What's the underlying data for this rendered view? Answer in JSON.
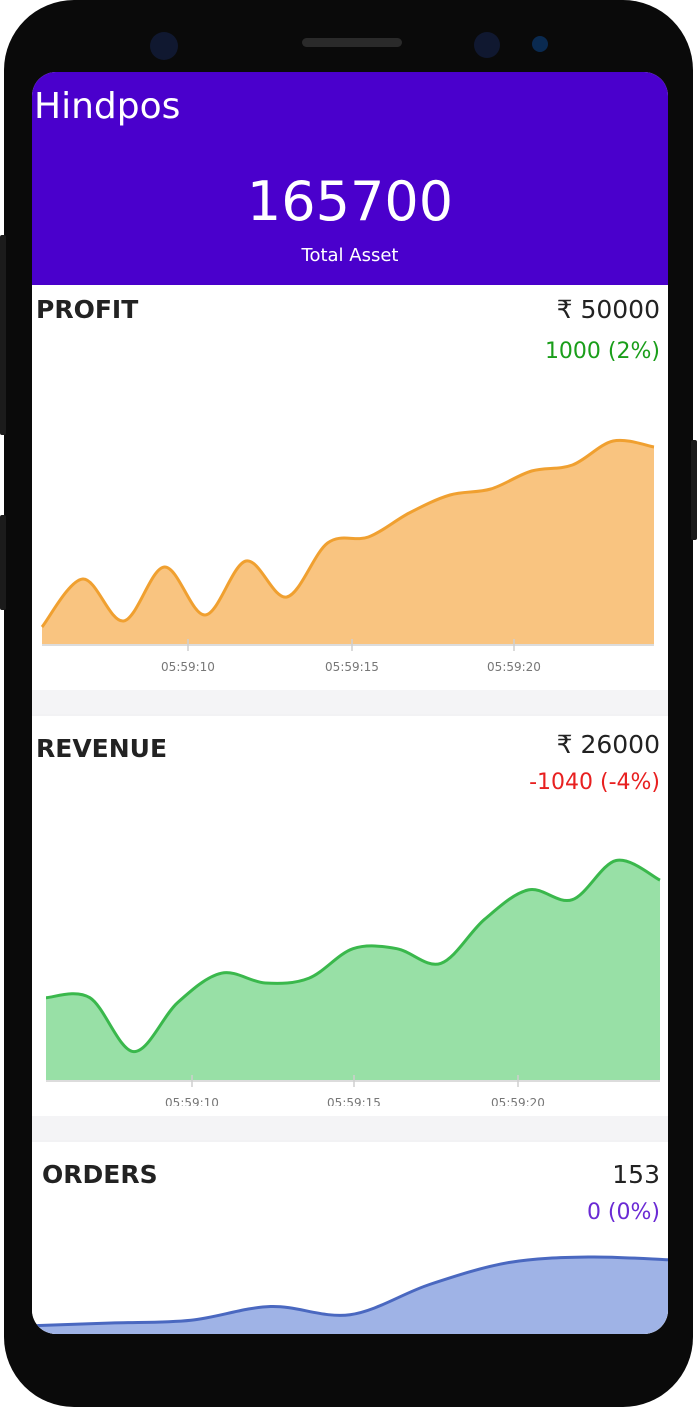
{
  "app": {
    "title": "Hindpos"
  },
  "header": {
    "total_value": "165700",
    "total_label": "Total Asset"
  },
  "cards": [
    {
      "title": "PROFIT",
      "value": "₹ 50000",
      "change": "1000 (2%)",
      "change_color": "#1a9e1a",
      "fill_color": "#f9c480",
      "line_color": "#f0a030",
      "ticks": [
        "05:59:10",
        "05:59:15",
        "05:59:20"
      ]
    },
    {
      "title": "REVENUE",
      "value": "₹ 26000",
      "change": "-1040 (-4%)",
      "change_color": "#e82020",
      "fill_color": "#98e0a6",
      "line_color": "#3ab84c",
      "ticks": [
        "05:59:10",
        "05:59:15",
        "05:59:20"
      ]
    },
    {
      "title": "ORDERS",
      "value": "153",
      "change": "0 (0%)",
      "change_color": "#6a2ad4",
      "fill_color": "#9fb3e6",
      "line_color": "#4a68c0",
      "ticks": []
    }
  ],
  "chart_data": [
    {
      "type": "area",
      "title": "PROFIT",
      "x_ticks": [
        "05:59:10",
        "05:59:15",
        "05:59:20"
      ],
      "values": [
        3,
        11,
        4,
        13,
        5,
        14,
        8,
        17,
        18,
        22,
        25,
        26,
        29,
        30,
        34,
        33
      ],
      "ylim": [
        0,
        40
      ]
    },
    {
      "type": "area",
      "title": "REVENUE",
      "x_ticks": [
        "05:59:10",
        "05:59:15",
        "05:59:20"
      ],
      "values": [
        17,
        17,
        6,
        16,
        22,
        20,
        21,
        27,
        27,
        24,
        33,
        39,
        37,
        45,
        41
      ],
      "ylim": [
        0,
        50
      ]
    },
    {
      "type": "area",
      "title": "ORDERS",
      "x_ticks": [],
      "values": [
        3,
        4,
        5,
        10,
        7,
        18,
        26,
        28,
        27
      ],
      "ylim": [
        0,
        40
      ]
    }
  ]
}
